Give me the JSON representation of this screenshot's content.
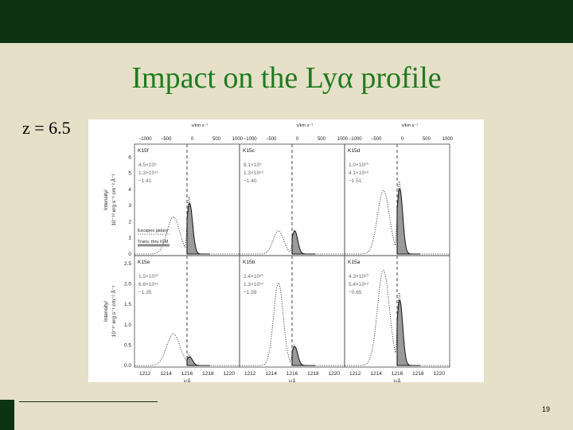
{
  "slide": {
    "title": "Impact on the Lyα profile",
    "redshift_label": "z = 6.5",
    "page_number": "19"
  },
  "colors": {
    "band": "#0d3310",
    "title": "#1f7a1f",
    "background": "#e6e0c8"
  },
  "figure": {
    "top_axis_label": "v/km s⁻¹",
    "top_ticks": [
      "−1000",
      "−500",
      "0",
      "500",
      "1000"
    ],
    "bottom_ticks": [
      "1212",
      "1214",
      "1216",
      "1218",
      "1220"
    ],
    "xlabel": "λ/Å",
    "rows": [
      {
        "ylabel1": "Intensity/",
        "ylabel2": "10⁻¹⁸ erg s⁻¹ cm⁻² Å⁻¹",
        "yticks": [
          "0",
          "1",
          "2",
          "3",
          "4",
          "5",
          "6"
        ]
      },
      {
        "ylabel1": "Intensity/",
        "ylabel2": "10⁻¹⁷ erg s⁻¹ cm⁻² Å⁻¹",
        "yticks": [
          "0.0",
          "0.5",
          "1.0",
          "1.5",
          "2.0",
          "2.5"
        ]
      }
    ],
    "panels": [
      {
        "label": "K15f",
        "mass": "4.5×10⁹",
        "lum": "1.3×10⁴¹",
        "slope": "−1.41",
        "esc_amp": 0.55,
        "esc_w": 0.85,
        "blue_amp": 0.35,
        "red_amp": 0.55,
        "trans_amp": 0.48
      },
      {
        "label": "K15c",
        "mass": "8.1×10⁹",
        "lum": "1.3×10⁴²",
        "slope": "−1.40",
        "esc_amp": 0.2,
        "esc_w": 0.7,
        "blue_amp": 0.22,
        "red_amp": 0.2,
        "trans_amp": 0.22
      },
      {
        "label": "K15d",
        "mass": "1.0×10¹⁰",
        "lum": "4.1×10⁴²",
        "slope": "−1.51",
        "esc_amp": 0.7,
        "esc_w": 0.8,
        "blue_amp": 0.6,
        "red_amp": 0.7,
        "trans_amp": 0.62
      },
      {
        "label": "K15e",
        "mass": "1.5×10¹⁰",
        "lum": "6.6×10⁴¹",
        "slope": "−1.35",
        "esc_amp": 0.26,
        "esc_w": 0.9,
        "blue_amp": 0.3,
        "red_amp": 0.1,
        "trans_amp": 0.08
      },
      {
        "label": "K15b",
        "mass": "2.4×10¹⁰",
        "lum": "1.3×10⁴²",
        "slope": "−1.59",
        "esc_amp": 0.78,
        "esc_w": 0.65,
        "blue_amp": 0.78,
        "red_amp": 0.2,
        "trans_amp": 0.18
      },
      {
        "label": "K15a",
        "mass": "4.3×10¹⁰",
        "lum": "5.4×10⁴²",
        "slope": "−0.65",
        "esc_amp": 0.95,
        "esc_w": 0.8,
        "blue_amp": 0.9,
        "red_amp": 0.7,
        "trans_amp": 0.62
      }
    ],
    "legend": {
      "escapes": "Escapes galaxy",
      "trans": "Trans. thru IGM"
    }
  }
}
